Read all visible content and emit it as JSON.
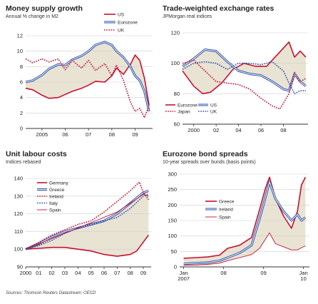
{
  "source": "Sources: Thomson Reuters Datastream; OECD",
  "colors": {
    "us": "#c8102e",
    "eurozone": "#2b4fa8",
    "shade": "#e9e3d3",
    "axis": "#333333"
  },
  "chart_data": [
    {
      "type": "line",
      "title": "Money supply growth",
      "subtitle": "Annual % change in M2",
      "ylim": [
        0,
        12
      ],
      "yticks": [
        0,
        2,
        4,
        6,
        8,
        10,
        12
      ],
      "xlim": [
        2004.3,
        2009.75
      ],
      "xticks": [
        {
          "v": 2005,
          "l": "2005"
        },
        {
          "v": 2006,
          "l": "06"
        },
        {
          "v": 2007,
          "l": "07"
        },
        {
          "v": 2008,
          "l": "08"
        },
        {
          "v": 2009,
          "l": "09"
        }
      ],
      "legend": "top-right",
      "shade_between": [
        "US",
        "Eurozone"
      ],
      "series": [
        {
          "name": "US",
          "color": "#c8102e",
          "style": "solid",
          "x": [
            2004.3,
            2004.6,
            2005.0,
            2005.3,
            2005.7,
            2006.0,
            2006.3,
            2006.7,
            2007.0,
            2007.3,
            2007.7,
            2008.0,
            2008.2,
            2008.5,
            2008.8,
            2009.0,
            2009.2,
            2009.4,
            2009.6
          ],
          "y": [
            5.2,
            5.0,
            4.3,
            3.9,
            4.0,
            4.4,
            4.8,
            5.2,
            5.6,
            6.1,
            6.0,
            6.8,
            7.8,
            7.0,
            8.3,
            9.5,
            8.8,
            6.5,
            3.0
          ]
        },
        {
          "name": "Eurozone",
          "color": "#2b4fa8",
          "style": "double",
          "x": [
            2004.3,
            2004.6,
            2005.0,
            2005.3,
            2005.7,
            2006.0,
            2006.3,
            2006.7,
            2007.0,
            2007.3,
            2007.7,
            2008.0,
            2008.2,
            2008.5,
            2008.8,
            2009.0,
            2009.2,
            2009.4,
            2009.6
          ],
          "y": [
            6.0,
            6.2,
            6.9,
            7.7,
            8.3,
            8.2,
            8.9,
            9.4,
            10.0,
            10.8,
            11.2,
            10.8,
            10.0,
            9.2,
            8.0,
            6.8,
            6.2,
            4.8,
            2.2
          ]
        },
        {
          "name": "UK",
          "color": "#c8102e",
          "style": "dotted",
          "x": [
            2004.3,
            2004.6,
            2005.0,
            2005.3,
            2005.7,
            2006.0,
            2006.3,
            2006.7,
            2007.0,
            2007.3,
            2007.7,
            2008.0,
            2008.2,
            2008.5,
            2008.8,
            2009.0,
            2009.2,
            2009.4,
            2009.6
          ],
          "y": [
            9.0,
            8.5,
            9.0,
            8.6,
            9.0,
            7.6,
            8.8,
            7.8,
            8.8,
            7.5,
            8.4,
            6.8,
            8.2,
            6.2,
            3.4,
            2.2,
            2.6,
            1.4,
            3.0
          ]
        }
      ]
    },
    {
      "type": "line",
      "title": "Trade-weighted exchange rates",
      "subtitle": "JPMorgan real indices",
      "ylim": [
        60,
        120
      ],
      "yticks": [
        60,
        80,
        100,
        120
      ],
      "xlim": [
        1999.0,
        2010.2
      ],
      "xticks": [
        {
          "v": 2000,
          "l": "2000"
        },
        {
          "v": 2002,
          "l": "02"
        },
        {
          "v": 2004,
          "l": "04"
        },
        {
          "v": 2006,
          "l": "06"
        },
        {
          "v": 2008,
          "l": "08"
        }
      ],
      "legend": "bottom-left",
      "shade_between": [
        "Eurozone",
        "US"
      ],
      "series": [
        {
          "name": "Eurozone",
          "color": "#c8102e",
          "style": "solid",
          "x": [
            1999.0,
            2000.0,
            2000.8,
            2001.5,
            2002.5,
            2003.5,
            2004.5,
            2005.5,
            2006.5,
            2007.5,
            2008.5,
            2009.0,
            2009.5,
            2010.0
          ],
          "y": [
            95,
            85,
            80,
            81,
            87,
            96,
            100,
            98,
            98,
            106,
            114,
            104,
            108,
            104
          ]
        },
        {
          "name": "US",
          "color": "#2b4fa8",
          "style": "double",
          "x": [
            1999.0,
            2000.0,
            2001.0,
            2002.0,
            2003.0,
            2004.0,
            2005.0,
            2006.0,
            2007.0,
            2008.0,
            2008.5,
            2009.0,
            2009.5,
            2010.0
          ],
          "y": [
            98,
            103,
            109,
            108,
            101,
            95,
            93,
            92,
            88,
            83,
            82,
            93,
            88,
            85
          ]
        },
        {
          "name": "Japan",
          "color": "#c8102e",
          "style": "dotted",
          "x": [
            1999.0,
            2000.0,
            2001.0,
            2002.0,
            2003.0,
            2004.0,
            2005.0,
            2006.0,
            2007.0,
            2007.7,
            2008.5,
            2009.0,
            2009.5,
            2010.0
          ],
          "y": [
            100,
            102,
            95,
            88,
            87,
            86,
            83,
            77,
            72,
            70,
            80,
            94,
            88,
            90
          ]
        },
        {
          "name": "UK",
          "color": "#2b4fa8",
          "style": "dotted",
          "x": [
            1999.0,
            2000.0,
            2001.0,
            2002.0,
            2003.0,
            2004.0,
            2005.0,
            2006.0,
            2007.0,
            2008.0,
            2008.5,
            2009.0,
            2009.5,
            2010.0
          ],
          "y": [
            96,
            100,
            101,
            100,
            96,
            100,
            100,
            99,
            101,
            95,
            87,
            80,
            82,
            82
          ]
        }
      ]
    },
    {
      "type": "line",
      "title": "Unit labour costs",
      "subtitle": "Indices rebased",
      "ylim": [
        90,
        140
      ],
      "yticks": [
        90,
        100,
        110,
        120,
        130,
        140
      ],
      "xlim": [
        2000.0,
        2009.6
      ],
      "xticks": [
        {
          "v": 2000,
          "l": "2000"
        },
        {
          "v": 2001,
          "l": "01"
        },
        {
          "v": 2002,
          "l": "02"
        },
        {
          "v": 2003,
          "l": "03"
        },
        {
          "v": 2004,
          "l": "04"
        },
        {
          "v": 2005,
          "l": "05"
        },
        {
          "v": 2006,
          "l": "06"
        },
        {
          "v": 2007,
          "l": "07"
        },
        {
          "v": 2008,
          "l": "08"
        },
        {
          "v": 2009,
          "l": "09"
        }
      ],
      "legend": "top-left",
      "shade_between": [
        "Germany",
        "Greece"
      ],
      "series": [
        {
          "name": "Germany",
          "color": "#c8102e",
          "style": "solid",
          "x": [
            2000.0,
            2001.0,
            2002.0,
            2003.0,
            2004.0,
            2005.0,
            2006.0,
            2007.0,
            2008.0,
            2008.5,
            2009.0,
            2009.4
          ],
          "y": [
            100,
            100.5,
            101,
            101,
            100,
            99,
            97,
            96,
            97,
            99,
            104,
            108
          ]
        },
        {
          "name": "Greece",
          "color": "#2b4fa8",
          "style": "double",
          "x": [
            2000.0,
            2001.0,
            2002.0,
            2003.0,
            2004.0,
            2005.0,
            2006.0,
            2007.0,
            2008.0,
            2009.0,
            2009.4
          ],
          "y": [
            100,
            103,
            107,
            110,
            112,
            114,
            116,
            120,
            126,
            132,
            133
          ]
        },
        {
          "name": "Ireland",
          "color": "#c8102e",
          "style": "dotted",
          "x": [
            2000.0,
            2001.0,
            2002.0,
            2003.0,
            2004.0,
            2005.0,
            2006.0,
            2007.0,
            2008.0,
            2008.7,
            2009.0,
            2009.4
          ],
          "y": [
            100,
            104,
            108,
            111,
            114,
            116,
            121,
            127,
            133,
            138,
            132,
            128
          ]
        },
        {
          "name": "Italy",
          "color": "#2b4fa8",
          "style": "dotted",
          "x": [
            2000.0,
            2001.0,
            2002.0,
            2003.0,
            2004.0,
            2005.0,
            2006.0,
            2007.0,
            2008.0,
            2009.0,
            2009.4
          ],
          "y": [
            100,
            102,
            105,
            109,
            112,
            114,
            116,
            118,
            123,
            130,
            131
          ]
        },
        {
          "name": "Spain",
          "color": "#c8102e",
          "style": "thin",
          "x": [
            2000.0,
            2001.0,
            2002.0,
            2003.0,
            2004.0,
            2005.0,
            2006.0,
            2007.0,
            2008.0,
            2009.0,
            2009.4
          ],
          "y": [
            100,
            103,
            106,
            109,
            112,
            115,
            118,
            121,
            126,
            131,
            130
          ]
        }
      ]
    },
    {
      "type": "line",
      "title": "Eurozone bond spreads",
      "subtitle": "10-year spreads over bunds (basis points)",
      "ylim": [
        0,
        300
      ],
      "yticks": [
        0,
        50,
        100,
        150,
        200,
        250,
        300
      ],
      "xlim": [
        2006.9,
        2010.15
      ],
      "xticks": [
        {
          "v": 2007.0,
          "l": "Jan 2007"
        },
        {
          "v": 2008.0,
          "l": "08"
        },
        {
          "v": 2009.0,
          "l": "09"
        },
        {
          "v": 2010.0,
          "l": "Jan 10"
        }
      ],
      "legend": "middle-left",
      "shade_between": [
        "Greece",
        "Spain"
      ],
      "series": [
        {
          "name": "Greece",
          "color": "#c8102e",
          "style": "solid",
          "x": [
            2007.0,
            2007.3,
            2007.6,
            2007.9,
            2008.1,
            2008.4,
            2008.7,
            2008.9,
            2009.05,
            2009.15,
            2009.3,
            2009.5,
            2009.7,
            2009.85,
            2009.95,
            2010.05
          ],
          "y": [
            28,
            30,
            32,
            38,
            60,
            70,
            95,
            185,
            255,
            290,
            220,
            165,
            125,
            180,
            265,
            290
          ]
        },
        {
          "name": "Ireland",
          "color": "#2b4fa8",
          "style": "double",
          "x": [
            2007.0,
            2007.3,
            2007.6,
            2007.9,
            2008.1,
            2008.4,
            2008.7,
            2008.9,
            2009.05,
            2009.15,
            2009.3,
            2009.5,
            2009.7,
            2009.85,
            2009.95,
            2010.05
          ],
          "y": [
            10,
            12,
            14,
            20,
            30,
            45,
            70,
            155,
            225,
            275,
            220,
            180,
            150,
            170,
            150,
            160
          ]
        },
        {
          "name": "Spain",
          "color": "#c8102e",
          "style": "thin",
          "x": [
            2007.0,
            2007.3,
            2007.6,
            2007.9,
            2008.1,
            2008.4,
            2008.7,
            2008.9,
            2009.05,
            2009.15,
            2009.3,
            2009.5,
            2009.7,
            2009.85,
            2009.95,
            2010.05
          ],
          "y": [
            5,
            6,
            8,
            12,
            20,
            30,
            40,
            60,
            90,
            110,
            75,
            65,
            55,
            55,
            62,
            68
          ]
        }
      ]
    }
  ]
}
